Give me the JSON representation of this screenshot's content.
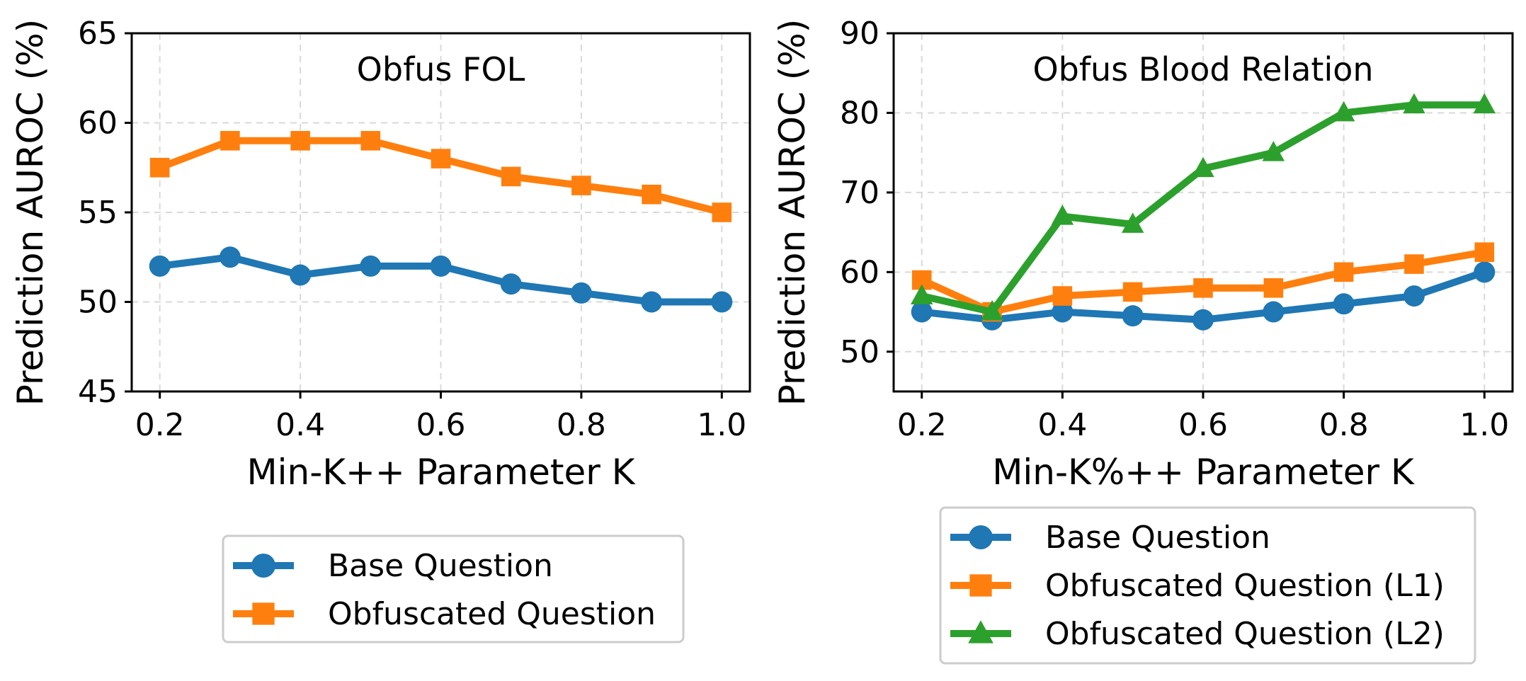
{
  "colors": {
    "blue": "#1f77b4",
    "orange": "#ff7f0e",
    "green": "#2ca02c"
  },
  "chart_data": [
    {
      "type": "line",
      "title": "Obfus FOL",
      "xlabel": "Min-K++ Parameter K",
      "ylabel": "Prediction AUROC (%)",
      "x": [
        0.2,
        0.3,
        0.4,
        0.5,
        0.6,
        0.7,
        0.8,
        0.9,
        1.0
      ],
      "xlim": [
        0.16,
        1.04
      ],
      "ylim": [
        45,
        65
      ],
      "xticks": [
        "0.2",
        "0.4",
        "0.6",
        "0.8",
        "1.0"
      ],
      "xtick_values": [
        0.2,
        0.4,
        0.6,
        0.8,
        1.0
      ],
      "yticks": [
        "45",
        "50",
        "55",
        "60",
        "65"
      ],
      "ytick_values": [
        45,
        50,
        55,
        60,
        65
      ],
      "grid": true,
      "legend_position": "below",
      "series": [
        {
          "name": "Base Question",
          "color": "#1f77b4",
          "marker": "circle",
          "values": [
            52,
            52.5,
            51.5,
            52,
            52,
            51,
            50.5,
            50,
            50
          ]
        },
        {
          "name": "Obfuscated Question",
          "color": "#ff7f0e",
          "marker": "square",
          "values": [
            57.5,
            59,
            59,
            59,
            58,
            57,
            56.5,
            56,
            55
          ]
        }
      ]
    },
    {
      "type": "line",
      "title": "Obfus Blood Relation",
      "xlabel": "Min-K%++ Parameter K",
      "ylabel": "Prediction AUROC (%)",
      "x": [
        0.2,
        0.3,
        0.4,
        0.5,
        0.6,
        0.7,
        0.8,
        0.9,
        1.0
      ],
      "xlim": [
        0.16,
        1.04
      ],
      "ylim": [
        45,
        90
      ],
      "xticks": [
        "0.2",
        "0.4",
        "0.6",
        "0.8",
        "1.0"
      ],
      "xtick_values": [
        0.2,
        0.4,
        0.6,
        0.8,
        1.0
      ],
      "yticks": [
        "50",
        "60",
        "70",
        "80",
        "90"
      ],
      "ytick_values": [
        50,
        60,
        70,
        80,
        90
      ],
      "grid": true,
      "legend_position": "below",
      "series": [
        {
          "name": "Base Question",
          "color": "#1f77b4",
          "marker": "circle",
          "values": [
            55,
            54,
            55,
            54.5,
            54,
            55,
            56,
            57,
            60
          ]
        },
        {
          "name": "Obfuscated Question (L1)",
          "color": "#ff7f0e",
          "marker": "square",
          "values": [
            59,
            55,
            57,
            57.5,
            58,
            58,
            60,
            61,
            62.5
          ]
        },
        {
          "name": "Obfuscated Question (L2)",
          "color": "#2ca02c",
          "marker": "triangle",
          "values": [
            57,
            55,
            67,
            66,
            73,
            75,
            80,
            81,
            81
          ]
        }
      ]
    }
  ]
}
